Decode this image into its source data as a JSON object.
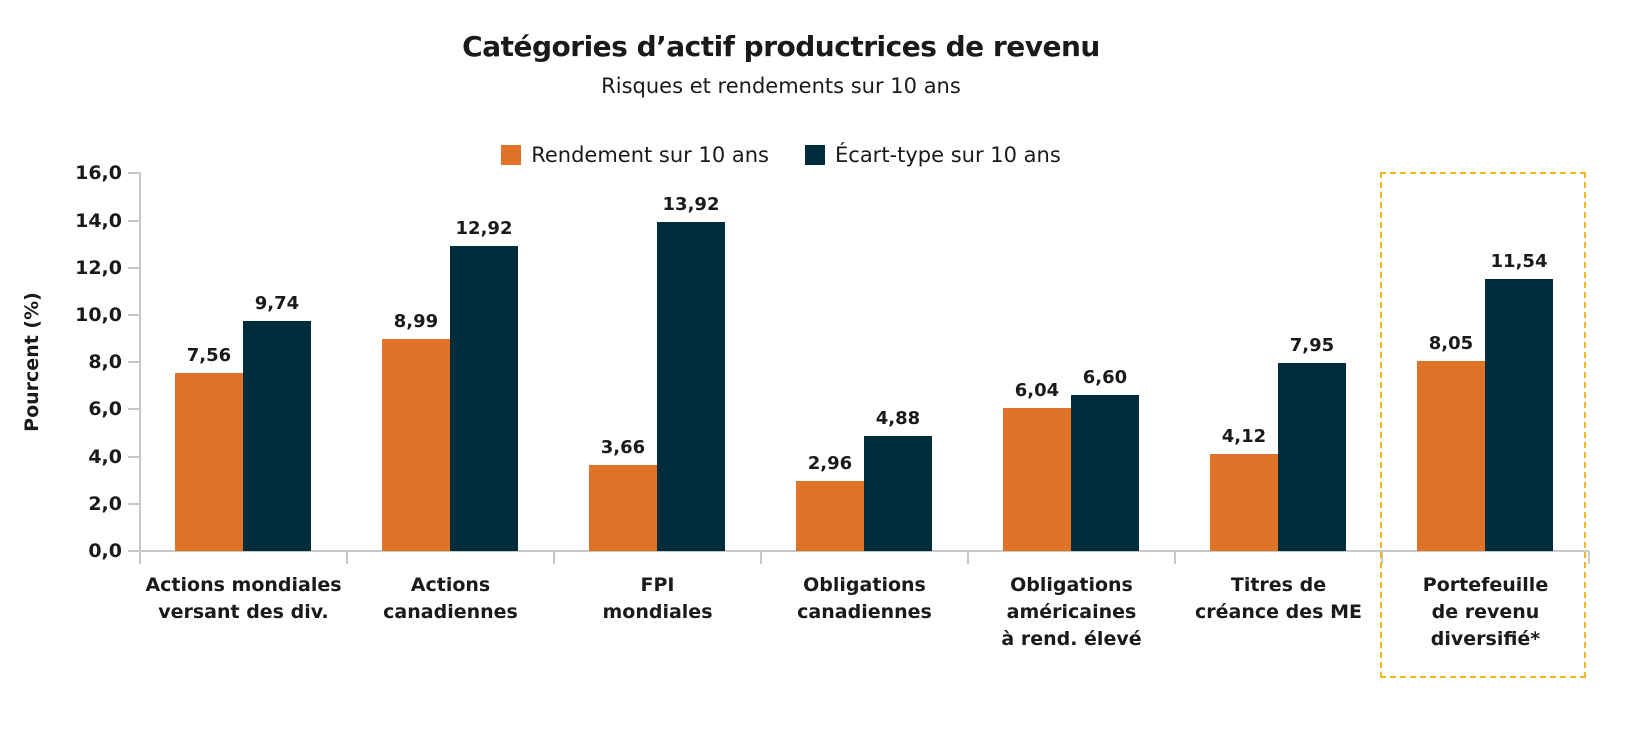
{
  "chart_data": {
    "type": "bar",
    "title": "Catégories d’actif productrices de revenu",
    "subtitle": "Risques et rendements sur 10 ans",
    "xlabel": "",
    "ylabel": "Pourcent (%)",
    "ylim": [
      0,
      16
    ],
    "yticks": [
      "0,0",
      "2,0",
      "4,0",
      "6,0",
      "8,0",
      "10,0",
      "12,0",
      "14,0",
      "16,0"
    ],
    "grid": false,
    "legend_position": "top",
    "categories": [
      "Actions mondiales\nversant des div.",
      "Actions\ncanadiennes",
      "FPI\nmondiales",
      "Obligations\ncanadiennes",
      "Obligations\naméricaines\nà rend. élevé",
      "Titres de\ncréance des ME",
      "Portefeuille\nde revenu\ndiversifié*"
    ],
    "series": [
      {
        "name": "Rendement sur 10 ans",
        "color": "#e07328",
        "values": [
          7.56,
          8.99,
          3.66,
          2.96,
          6.04,
          4.12,
          8.05
        ],
        "labels": [
          "7,56",
          "8,99",
          "3,66",
          "2,96",
          "6,04",
          "4,12",
          "8,05"
        ]
      },
      {
        "name": "Écart-type sur 10 ans",
        "color": "#002d3c",
        "values": [
          9.74,
          12.92,
          13.92,
          4.88,
          6.6,
          7.95,
          11.54
        ],
        "labels": [
          "9,74",
          "12,92",
          "13,92",
          "4,88",
          "6,60",
          "7,95",
          "11,54"
        ]
      }
    ],
    "annotations": [
      {
        "type": "dashed-box",
        "target_category": "Portefeuille\nde revenu\ndiversifié*",
        "color": "#f5b81c"
      }
    ]
  }
}
